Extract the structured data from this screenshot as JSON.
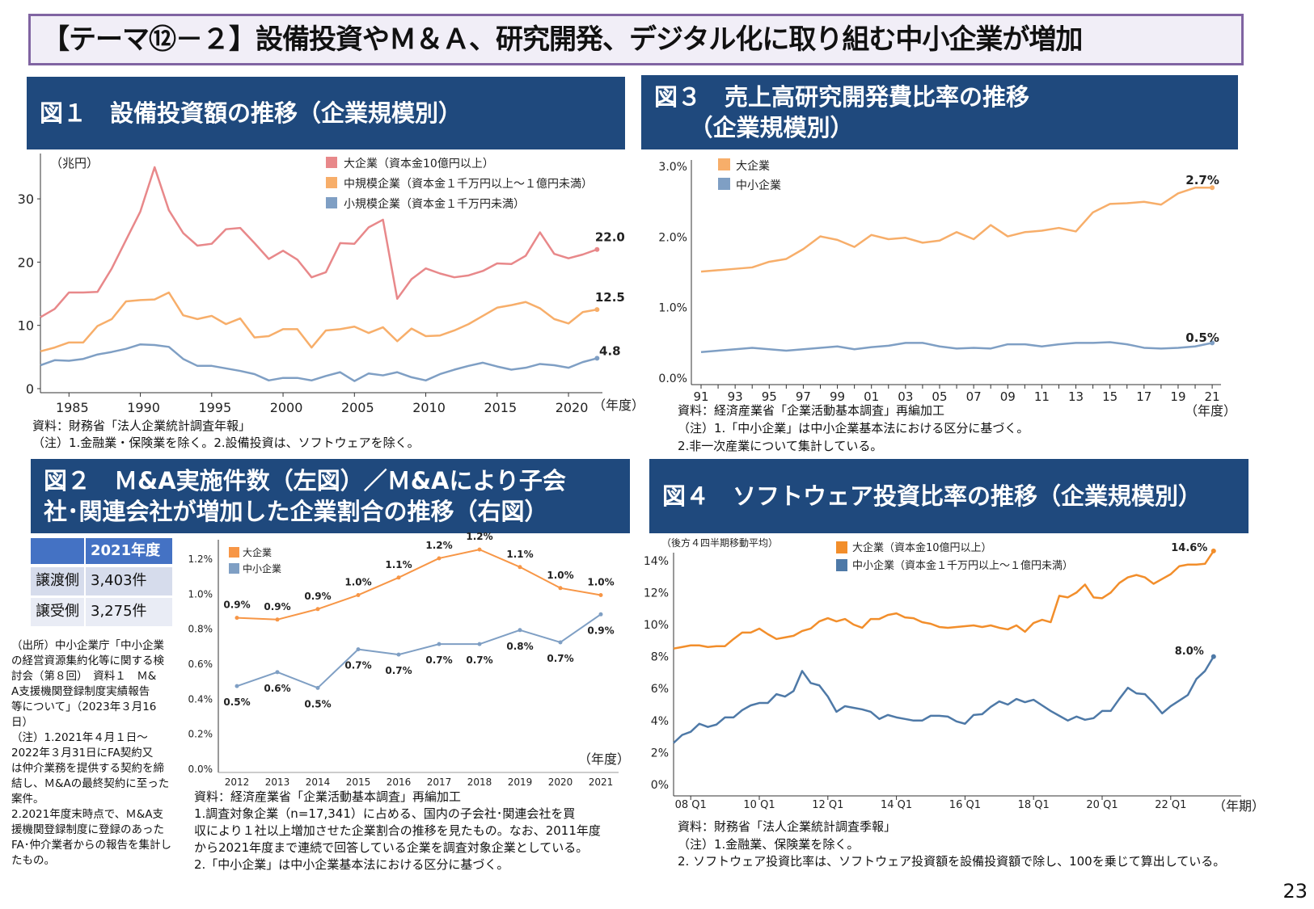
{
  "title": "【テーマ⑫－２】設備投資やＭ＆Ａ、研究開発、デジタル化に取り組む中小企業が増加",
  "page_number": "23",
  "fig1": {
    "header": "図１　設備投資額の推移（企業規模別）",
    "source": "資料：財務省「法人企業統計調査年報」",
    "note": "（注）1.金融業・保険業を除く。2.設備投資は、ソフトウェアを除く。"
  },
  "fig2": {
    "header_lines": [
      "図２　Ｍ&A実施件数（左図）／Ｍ&Aにより子会",
      "社･関連会社が増加した企業割合の推移（右図）"
    ],
    "table": {
      "header": "2021年度",
      "rows": [
        {
          "label": "譲渡側",
          "value": "3,403件"
        },
        {
          "label": "譲受側",
          "value": "3,275件"
        }
      ]
    },
    "left_notes": [
      "（出所）中小企業庁「中小企業",
      "の経営資源集約化等に関する検",
      "討会（第８回）　資料１　Ｍ&",
      "A支援機関登録制度実績報告",
      "等について」（2023年３月16",
      "日）",
      "（注）1.2021年４月１日～",
      "2022年３月31日にFA契約又",
      "は仲介業務を提供する契約を締",
      "結し、Ｍ&Aの最終契約に至った",
      "案件。",
      "2.2021年度末時点で、Ｍ&A支",
      "援機関登録制度に登録のあった",
      "FA･仲介業者からの報告を集計し",
      "たもの。"
    ],
    "bottom_notes": [
      "資料：経済産業省「企業活動基本調査」再編加工",
      "1.調査対象企業（n=17,341）に占める、国内の子会社･関連会社を買",
      "収により１社以上増加させた企業割合の推移を見たもの。なお、2011年度",
      "から2021年度まで連続で回答している企業を調査対象企業としている。",
      "2.「中小企業」は中小企業基本法における区分に基づく。"
    ]
  },
  "fig3": {
    "header_lines": [
      "図３　売上高研究開発費比率の推移",
      "　　（企業規模別）"
    ],
    "source": "資料：経済産業省「企業活動基本調査」再編加工",
    "notes": [
      "（注）1.「中小企業」は中小企業基本法における区分に基づく。",
      "2.非一次産業について集計している。"
    ]
  },
  "fig4": {
    "header": "図４　ソフトウェア投資比率の推移（企業規模別）",
    "source": "資料：財務省「法人企業統計調査季報」",
    "notes": [
      "（注）1.金融業、保険業を除く。",
      "2. ソフトウェア投資比率は、ソフトウェア投資額を設備投資額で除し、100を乗じて算出している。"
    ]
  },
  "chart_data": [
    {
      "id": "fig1",
      "type": "line",
      "ylabel": "（兆円）",
      "xlabel": "（年度）",
      "ylim": [
        0,
        35
      ],
      "yticks": [
        0,
        10,
        20,
        30
      ],
      "xticks": [
        1985,
        1990,
        1995,
        2000,
        2005,
        2010,
        2015,
        2020
      ],
      "legend": "top-right",
      "x": [
        1983,
        1984,
        1985,
        1986,
        1987,
        1988,
        1989,
        1990,
        1991,
        1992,
        1993,
        1994,
        1995,
        1996,
        1997,
        1998,
        1999,
        2000,
        2001,
        2002,
        2003,
        2004,
        2005,
        2006,
        2007,
        2008,
        2009,
        2010,
        2011,
        2012,
        2013,
        2014,
        2015,
        2016,
        2017,
        2018,
        2019,
        2020,
        2021,
        2022
      ],
      "series": [
        {
          "name": "大企業（資本金10億円以上）",
          "color": "#e8888a",
          "end_label": "22.0",
          "values": [
            11.3,
            12.6,
            15.2,
            15.2,
            15.3,
            19,
            23.5,
            28,
            35,
            28.2,
            24.6,
            22.6,
            22.9,
            25.2,
            25.4,
            23,
            20.5,
            21.8,
            20.4,
            17.6,
            18.4,
            23,
            22.9,
            25.5,
            26.7,
            14.2,
            17.3,
            19,
            18.2,
            17.6,
            17.9,
            18.6,
            19.8,
            19.7,
            21,
            24.7,
            21.3,
            20.6,
            21.2,
            22.0
          ]
        },
        {
          "name": "中規模企業（資本金１千万円以上～１億円未満）",
          "color": "#f7ae6a",
          "end_label": "12.5",
          "values": [
            5.9,
            6.5,
            7.3,
            7.3,
            9.9,
            11,
            13.8,
            14,
            14.1,
            15.2,
            11.6,
            11,
            11.5,
            10.2,
            11.1,
            8.1,
            8.3,
            9.4,
            9.4,
            6.5,
            9.2,
            9.4,
            9.8,
            8.8,
            9.7,
            7.5,
            9.5,
            8.3,
            8.4,
            9.2,
            10.2,
            11.5,
            12.8,
            13.2,
            13.7,
            12.7,
            11,
            10.3,
            12.1,
            12.5
          ]
        },
        {
          "name": "小規模企業（資本金１千万円未満）",
          "color": "#7f9fc4",
          "end_label": "4.8",
          "values": [
            3.7,
            4.5,
            4.4,
            4.7,
            5.4,
            5.8,
            6.3,
            7,
            6.9,
            6.6,
            4.7,
            3.6,
            3.6,
            3.2,
            2.8,
            2.3,
            1.3,
            1.7,
            1.7,
            1.3,
            2,
            2.6,
            1.2,
            2.4,
            2.1,
            2.6,
            1.8,
            1.3,
            2.3,
            3,
            3.6,
            4.1,
            3.5,
            3,
            3.3,
            3.9,
            3.7,
            3.3,
            4.2,
            4.8
          ]
        }
      ]
    },
    {
      "id": "fig2",
      "type": "line",
      "xlabel": "（年度）",
      "ylim": [
        0,
        1.3
      ],
      "yticks": [
        "0.0%",
        "0.2%",
        "0.4%",
        "0.6%",
        "0.8%",
        "1.0%",
        "1.2%"
      ],
      "legend": "top-left",
      "x": [
        "2012",
        "2013",
        "2014",
        "2015",
        "2016",
        "2017",
        "2018",
        "2019",
        "2020",
        "2021"
      ],
      "series": [
        {
          "name": "大企業",
          "color": "#f79646",
          "values": [
            0.86,
            0.85,
            0.91,
            0.99,
            1.09,
            1.2,
            1.25,
            1.15,
            1.03,
            0.99
          ],
          "labels": [
            "0.9%",
            "0.9%",
            "0.9%",
            "1.0%",
            "1.1%",
            "1.2%",
            "1.2%",
            "1.1%",
            "1.0%",
            "1.0%"
          ]
        },
        {
          "name": "中小企業",
          "color": "#7f9fc4",
          "values": [
            0.47,
            0.55,
            0.46,
            0.68,
            0.65,
            0.71,
            0.71,
            0.79,
            0.72,
            0.88
          ],
          "labels": [
            "0.5%",
            "0.6%",
            "0.5%",
            "0.7%",
            "0.7%",
            "0.7%",
            "0.7%",
            "0.8%",
            "0.7%",
            "0.9%"
          ]
        }
      ]
    },
    {
      "id": "fig3",
      "type": "line",
      "xlabel": "（年度）",
      "ylim": [
        0,
        3
      ],
      "yticks": [
        "0.0%",
        "1.0%",
        "2.0%",
        "3.0%"
      ],
      "legend": "top-left",
      "x": [
        "91",
        "92",
        "93",
        "94",
        "95",
        "96",
        "97",
        "98",
        "99",
        "00",
        "01",
        "02",
        "03",
        "04",
        "05",
        "06",
        "07",
        "08",
        "09",
        "10",
        "11",
        "12",
        "13",
        "14",
        "15",
        "16",
        "17",
        "18",
        "19",
        "20",
        "21"
      ],
      "xtick_labels": [
        "91",
        "93",
        "95",
        "97",
        "99",
        "01",
        "03",
        "05",
        "07",
        "09",
        "11",
        "13",
        "15",
        "17",
        "19",
        "21"
      ],
      "series": [
        {
          "name": "大企業",
          "color": "#f7ae6a",
          "end_label": "2.7%",
          "values": [
            1.51,
            1.53,
            1.55,
            1.57,
            1.65,
            1.69,
            1.83,
            2.01,
            1.96,
            1.86,
            2.03,
            1.97,
            1.99,
            1.92,
            1.95,
            2.07,
            1.97,
            2.17,
            2.01,
            2.07,
            2.09,
            2.13,
            2.08,
            2.35,
            2.47,
            2.48,
            2.5,
            2.46,
            2.62,
            2.7,
            2.7
          ]
        },
        {
          "name": "中小企業",
          "color": "#7f9fc4",
          "end_label": "0.5%",
          "values": [
            0.37,
            0.39,
            0.41,
            0.43,
            0.41,
            0.39,
            0.41,
            0.43,
            0.45,
            0.41,
            0.44,
            0.46,
            0.5,
            0.5,
            0.45,
            0.42,
            0.43,
            0.42,
            0.48,
            0.48,
            0.45,
            0.48,
            0.5,
            0.5,
            0.51,
            0.48,
            0.43,
            0.42,
            0.43,
            0.45,
            0.5
          ]
        }
      ]
    },
    {
      "id": "fig4",
      "type": "line",
      "ylabel": "（後方４四半期移動平均）",
      "xlabel": "（年期）",
      "ylim": [
        0,
        15
      ],
      "yticks": [
        "0%",
        "2%",
        "4%",
        "6%",
        "8%",
        "10%",
        "12%",
        "14%"
      ],
      "legend": "top-center",
      "xtick_labels": [
        "08 Q1",
        "10 Q1",
        "12 Q1",
        "14 Q1",
        "16 Q1",
        "18 Q1",
        "20 Q1",
        "22 Q1"
      ],
      "series": [
        {
          "name": "大企業（資本金10億円以上）",
          "color": "#f28e2b",
          "end_label": "14.6%",
          "values": [
            8.5,
            8.6,
            8.7,
            8.7,
            8.6,
            8.65,
            8.65,
            9.1,
            9.5,
            9.5,
            9.75,
            9.4,
            9.1,
            9.2,
            9.3,
            9.6,
            9.75,
            10.2,
            10.4,
            10.2,
            10.35,
            10.0,
            9.8,
            10.35,
            10.35,
            10.6,
            10.7,
            10.45,
            10.4,
            10.15,
            10.05,
            9.85,
            9.8,
            9.85,
            9.9,
            9.95,
            9.85,
            9.95,
            9.8,
            9.7,
            9.95,
            9.55,
            10.1,
            10.3,
            10.15,
            11.8,
            11.7,
            12.0,
            12.5,
            11.7,
            11.65,
            12.0,
            12.6,
            12.95,
            13.1,
            12.95,
            12.55,
            12.85,
            13.15,
            13.65,
            13.75,
            13.75,
            13.8,
            14.6
          ]
        },
        {
          "name": "中小企業（資本金１千万円以上～１億円未満）",
          "color": "#4e79a7",
          "end_label": "8.0%",
          "values": [
            2.6,
            3.1,
            3.3,
            3.8,
            3.6,
            3.75,
            4.2,
            4.2,
            4.65,
            4.95,
            5.1,
            5.1,
            5.65,
            5.5,
            5.85,
            7.1,
            6.35,
            6.2,
            5.5,
            4.55,
            4.9,
            4.8,
            4.7,
            4.55,
            4.1,
            4.35,
            4.2,
            4.1,
            4.0,
            4.0,
            4.3,
            4.3,
            4.25,
            3.95,
            3.8,
            4.35,
            4.4,
            4.85,
            5.2,
            5.0,
            5.35,
            5.15,
            5.3,
            4.95,
            4.6,
            4.3,
            4.0,
            4.25,
            4.05,
            4.15,
            4.6,
            4.6,
            5.35,
            6.05,
            5.7,
            5.65,
            5.1,
            4.45,
            4.9,
            5.25,
            5.6,
            6.6,
            7.1,
            8.0
          ]
        }
      ]
    }
  ]
}
